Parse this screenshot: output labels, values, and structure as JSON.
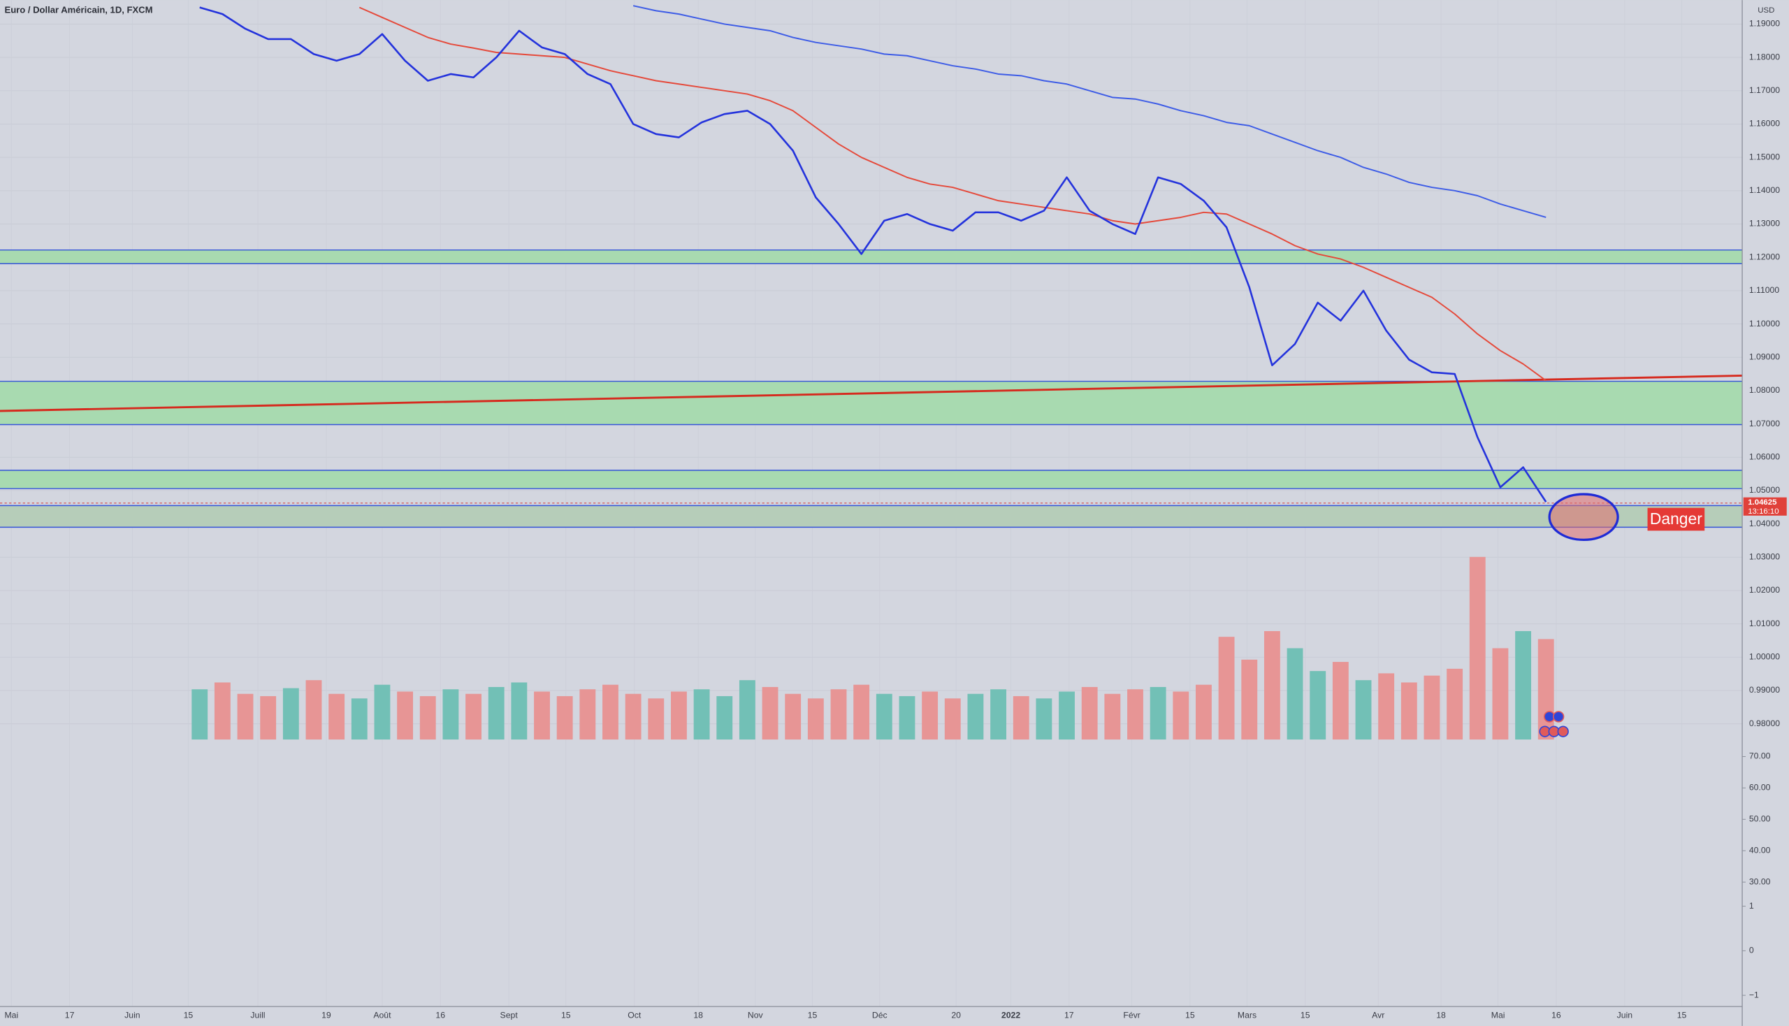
{
  "chart_data": {
    "type": "line",
    "title": "Euro / Dollar Américain, 1D, FXCM",
    "currency": "USD",
    "ylim": [
      0.9753,
      1.1972
    ],
    "yticks": [
      {
        "value": 1.19,
        "label": "1.19000"
      },
      {
        "value": 1.18,
        "label": "1.18000"
      },
      {
        "value": 1.17,
        "label": "1.17000"
      },
      {
        "value": 1.16,
        "label": "1.16000"
      },
      {
        "value": 1.15,
        "label": "1.15000"
      },
      {
        "value": 1.14,
        "label": "1.14000"
      },
      {
        "value": 1.13,
        "label": "1.13000"
      },
      {
        "value": 1.12,
        "label": "1.12000"
      },
      {
        "value": 1.11,
        "label": "1.11000"
      },
      {
        "value": 1.1,
        "label": "1.10000"
      },
      {
        "value": 1.09,
        "label": "1.09000"
      },
      {
        "value": 1.08,
        "label": "1.08000"
      },
      {
        "value": 1.07,
        "label": "1.07000"
      },
      {
        "value": 1.06,
        "label": "1.06000"
      },
      {
        "value": 1.05,
        "label": "1.05000"
      },
      {
        "value": 1.04,
        "label": "1.04000"
      },
      {
        "value": 1.03,
        "label": "1.03000"
      },
      {
        "value": 1.02,
        "label": "1.02000"
      },
      {
        "value": 1.01,
        "label": "1.01000"
      },
      {
        "value": 1.0,
        "label": "1.00000"
      },
      {
        "value": 0.99,
        "label": "0.99000"
      },
      {
        "value": 0.98,
        "label": "0.98000"
      }
    ],
    "x_labels": [
      "Mai",
      "17",
      "Juin",
      "15",
      "Juill",
      "19",
      "Août",
      "16",
      "Sept",
      "15",
      "Oct",
      "18",
      "Nov",
      "15",
      "Déc",
      "20",
      "2022",
      "17",
      "Févr",
      "15",
      "Mars",
      "15",
      "Avr",
      "18",
      "Mai",
      "16",
      "Juin",
      "15"
    ],
    "series": [
      {
        "color": "#2433dc",
        "values": [
          1.195,
          1.193,
          1.1886,
          1.1855,
          1.1855,
          1.181,
          1.179,
          1.181,
          1.187,
          1.179,
          1.173,
          1.175,
          1.174,
          1.18,
          1.188,
          1.183,
          1.181,
          1.175,
          1.172,
          1.16,
          1.157,
          1.156,
          1.1605,
          1.163,
          1.164,
          1.16,
          1.152,
          1.138,
          1.13,
          1.121,
          1.131,
          1.133,
          1.13,
          1.128,
          1.1335,
          1.1335,
          1.131,
          1.134,
          1.144,
          1.134,
          1.13,
          1.127,
          1.144,
          1.142,
          1.137,
          1.129,
          1.111,
          1.0876,
          1.094,
          1.1064,
          1.101,
          1.11,
          1.098,
          1.0893,
          1.0855,
          1.085,
          1.066,
          1.051,
          1.057,
          1.0466
        ]
      },
      {
        "color": "#e5493a",
        "values": [
          null,
          null,
          null,
          null,
          null,
          null,
          null,
          1.195,
          1.192,
          1.189,
          1.186,
          1.184,
          1.1828,
          1.1815,
          1.181,
          1.1805,
          1.18,
          1.178,
          1.176,
          1.1745,
          1.173,
          1.172,
          1.171,
          1.17,
          1.169,
          1.167,
          1.164,
          1.159,
          1.154,
          1.15,
          1.147,
          1.144,
          1.142,
          1.141,
          1.139,
          1.137,
          1.136,
          1.135,
          1.134,
          1.133,
          1.131,
          1.13,
          1.131,
          1.132,
          1.1335,
          1.133,
          1.13,
          1.127,
          1.1235,
          1.121,
          1.1195,
          1.117,
          1.114,
          1.111,
          1.108,
          1.103,
          1.097,
          1.092,
          1.088,
          1.083
        ]
      },
      {
        "color": "#3d5ce6",
        "values": [
          null,
          null,
          null,
          null,
          null,
          null,
          null,
          null,
          null,
          null,
          null,
          null,
          null,
          null,
          null,
          null,
          null,
          null,
          null,
          1.1955,
          1.194,
          1.193,
          1.1915,
          1.19,
          1.189,
          1.188,
          1.186,
          1.1845,
          1.1835,
          1.1825,
          1.181,
          1.1805,
          1.179,
          1.1775,
          1.1765,
          1.175,
          1.1745,
          1.173,
          1.172,
          1.17,
          1.168,
          1.1675,
          1.166,
          1.164,
          1.1625,
          1.1605,
          1.1595,
          1.157,
          1.1545,
          1.152,
          1.15,
          1.147,
          1.145,
          1.1425,
          1.141,
          1.14,
          1.1385,
          1.136,
          1.134,
          1.132
        ]
      }
    ],
    "volume": {
      "up_color": "#72c0b6",
      "down_color": "#e79595",
      "ylim": [
        0,
        165
      ],
      "values": [
        44,
        50,
        40,
        38,
        45,
        52,
        40,
        36,
        48,
        42,
        38,
        44,
        40,
        46,
        50,
        42,
        38,
        44,
        48,
        40,
        36,
        42,
        44,
        38,
        52,
        46,
        40,
        36,
        44,
        48,
        40,
        38,
        42,
        36,
        40,
        44,
        38,
        36,
        42,
        46,
        40,
        44,
        46,
        42,
        48,
        90,
        70,
        95,
        80,
        60,
        68,
        52,
        58,
        50,
        56,
        62,
        160,
        80,
        95,
        88
      ]
    },
    "zones": [
      {
        "low": 1.1181,
        "high": 1.1222,
        "color": "#a8dab0"
      },
      {
        "low": 1.0698,
        "high": 1.0828,
        "color": "#a8dab0"
      },
      {
        "low": 1.0506,
        "high": 1.0561,
        "color": "#a8dab0"
      },
      {
        "low": 1.039,
        "high": 1.0455,
        "color": "#b6cdb9"
      }
    ],
    "trendline": {
      "color": "#d62a1e",
      "values": [
        1.0739,
        1.0845
      ]
    },
    "last_price": {
      "value": 1.04625,
      "time": "13:16:10"
    },
    "annotation": "Danger",
    "pane2": {
      "ylim": [
        -8.9,
        74.7
      ],
      "yticks": [
        {
          "value": 70,
          "label": "70.00"
        },
        {
          "value": 60,
          "label": "60.00"
        },
        {
          "value": 50,
          "label": "50.00"
        },
        {
          "value": 40,
          "label": "40.00"
        },
        {
          "value": 30,
          "label": "30.00"
        }
      ]
    },
    "pane3": {
      "ylim": [
        -1.2,
        4.69
      ],
      "yticks": [
        1,
        0,
        {
          "value": -1,
          "label": "−1"
        }
      ]
    }
  }
}
